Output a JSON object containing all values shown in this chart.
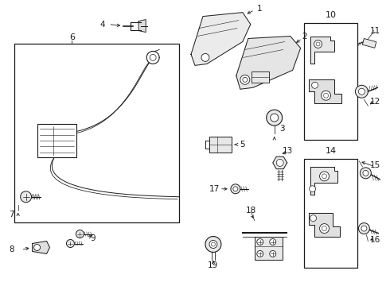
{
  "background_color": "#ffffff",
  "line_color": "#1a1a1a",
  "lw": 0.7,
  "fontsize": 7.5,
  "fig_w": 4.9,
  "fig_h": 3.6,
  "dpi": 100
}
